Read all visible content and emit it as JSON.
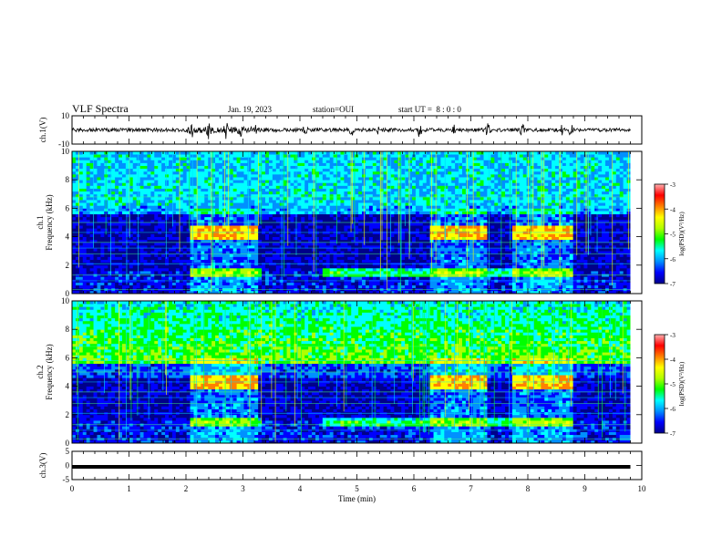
{
  "header": {
    "title": "VLF Spectra",
    "date": "Jan. 19, 2023",
    "station_label": "station=",
    "station": "OUI",
    "start_label": "start  UT =",
    "start_time": "8 : 0  : 0"
  },
  "chart_data": {
    "type": "heatmap",
    "xlabel": "Time (min)",
    "xlim": [
      0,
      10
    ],
    "xticks": [
      "0",
      "1",
      "2",
      "3",
      "4",
      "5",
      "6",
      "7",
      "8",
      "9",
      "10"
    ],
    "panels": [
      {
        "id": "ch1-waveform",
        "type": "line",
        "ylabel": "ch.1(V)",
        "ylim": [
          -10,
          10
        ],
        "yticks": [
          "10",
          "-10"
        ],
        "data_end_min": 9.8,
        "burst_times_min": [
          2.1,
          2.4,
          2.7,
          2.95,
          3.2,
          4.1,
          4.9,
          5.4,
          6.1,
          6.7,
          7.3,
          7.9,
          8.6,
          8.75
        ]
      },
      {
        "id": "ch1-spectrogram",
        "type": "heatmap",
        "ylabel": "Frequency (kHz)",
        "channel_label": "ch.1",
        "ylim": [
          0,
          10
        ],
        "yticks": [
          "0",
          "2",
          "4",
          "6",
          "8",
          "10"
        ],
        "data_end_min": 9.8,
        "colorbar": {
          "label": "log(PSD)(V²/Hz)",
          "range": [
            -7,
            -3
          ],
          "ticks": [
            "-3",
            "-4",
            "-5",
            "-6",
            "-7"
          ]
        }
      },
      {
        "id": "ch2-spectrogram",
        "type": "heatmap",
        "ylabel": "Frequency (kHz)",
        "channel_label": "ch.2",
        "ylim": [
          0,
          10
        ],
        "yticks": [
          "0",
          "2",
          "4",
          "6",
          "8",
          "10"
        ],
        "data_end_min": 9.8,
        "colorbar": {
          "label": "log(PSD)(V²/Hz)",
          "range": [
            -7,
            -3
          ],
          "ticks": [
            "-3",
            "-4",
            "-5",
            "-6",
            "-7"
          ]
        }
      },
      {
        "id": "ch3-waveform",
        "type": "line",
        "ylabel": "ch.3(V)",
        "ylim": [
          -5,
          5
        ],
        "yticks": [
          "5",
          "0",
          "-5"
        ],
        "data_end_min": 9.8,
        "level_v": -0.5
      }
    ],
    "colormap": [
      "#00008a",
      "#0000ff",
      "#0090ff",
      "#00ffff",
      "#00ff00",
      "#b0ff00",
      "#ffff00",
      "#ff8000",
      "#ff0000",
      "#ffb0b0",
      "#ffffff"
    ]
  }
}
